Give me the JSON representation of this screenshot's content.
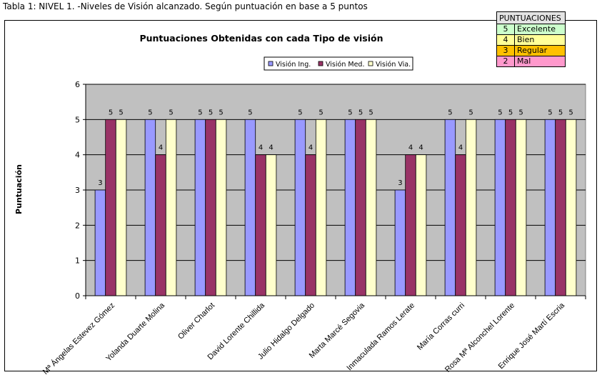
{
  "caption": "Tabla 1: NIVEL 1. -Niveles de Visión alcanzado. Según puntuación en base a 5 puntos",
  "score_legend": {
    "header": "PUNTUACIONES",
    "rows": [
      {
        "value": "5",
        "label": "Excelente",
        "color": "#ccffcc"
      },
      {
        "value": "4",
        "label": "Bien",
        "color": "#ffff99"
      },
      {
        "value": "3",
        "label": "Regular",
        "color": "#ffc000"
      },
      {
        "value": "2",
        "label": "Mal",
        "color": "#ff99cc"
      }
    ]
  },
  "chart_data": {
    "type": "bar",
    "title": "Puntuaciones Obtenidas con cada Tipo de visión",
    "xlabel": "",
    "ylabel": "Puntuación",
    "ylim": [
      0,
      6
    ],
    "yticks": [
      "0",
      "1",
      "2",
      "3",
      "4",
      "5",
      "6"
    ],
    "grid": true,
    "legend_position": "top-center",
    "plot_background": "#c0c0c0",
    "categories": [
      "Mª Ángelas Estevez Gómez",
      "Yolanda Duarte Molina",
      "Oliver Charlot",
      "David Lorente Chillida",
      "Julio Hidalgo Delgado",
      "Marta Marcé Segovia",
      "Inmaculada Ramos Lerate",
      "María Corras curri",
      "Rosa Mª Alconchel Lorente",
      "Enrique José Martí Escria"
    ],
    "series": [
      {
        "name": "Visión Ing.",
        "color": "#9999ff",
        "values": [
          3,
          5,
          5,
          5,
          5,
          5,
          3,
          5,
          5,
          5
        ]
      },
      {
        "name": "Visión Med.",
        "color": "#993366",
        "values": [
          5,
          4,
          5,
          4,
          4,
          5,
          4,
          4,
          5,
          5
        ]
      },
      {
        "name": "Visión Via.",
        "color": "#ffffcc",
        "values": [
          5,
          5,
          5,
          4,
          5,
          5,
          4,
          5,
          5,
          5
        ]
      }
    ]
  }
}
